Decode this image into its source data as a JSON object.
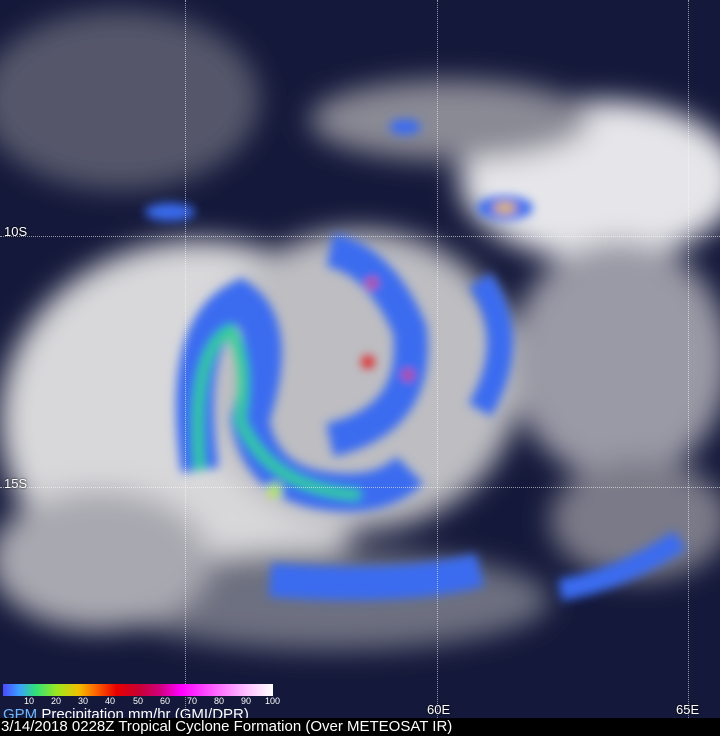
{
  "colors": {
    "legend_gpm": "#6fb8ff",
    "background": "#14183a"
  },
  "grid": {
    "lat_labels": [
      "10S",
      "15S"
    ],
    "lon_labels": [
      "60E",
      "65E"
    ]
  },
  "legend": {
    "ticks": [
      "10",
      "20",
      "30",
      "40",
      "50",
      "60",
      "70",
      "80",
      "90",
      "100"
    ],
    "product": "GPM",
    "title": "Precipitation mm/hr (GMI/DPR)"
  },
  "caption": "3/14/2018 0228Z  Tropical Cyclone Formation (Over METEOSAT IR)"
}
